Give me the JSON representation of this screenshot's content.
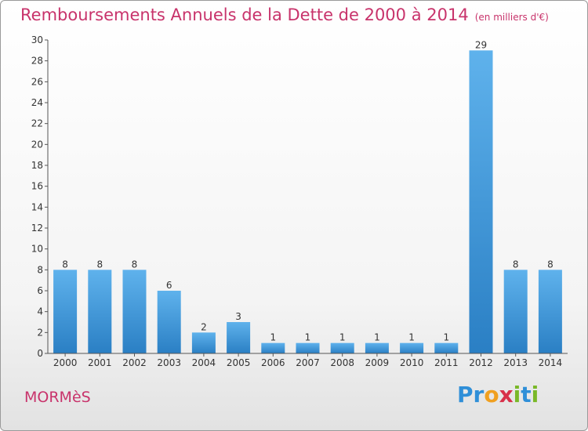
{
  "title": "Remboursements Annuels de la Dette de 2000 à 2014",
  "subtitle": "(en milliers d'€)",
  "commune": "MORMèS",
  "logo": {
    "letters": [
      "P",
      "r",
      "o",
      "x",
      "i",
      "t",
      "i"
    ],
    "colors": [
      "#2f8fd8",
      "#2f8fd8",
      "#f0a020",
      "#d8304a",
      "#7ab828",
      "#2f8fd8",
      "#7ab828"
    ]
  },
  "colors": {
    "bar_top": "#5fb2ec",
    "bar_bottom": "#2a7fc4",
    "title": "#c8336b",
    "axis": "#555555",
    "grid_tick": "#555555"
  },
  "chart_data": {
    "type": "bar",
    "categories": [
      "2000",
      "2001",
      "2002",
      "2003",
      "2004",
      "2005",
      "2006",
      "2007",
      "2008",
      "2009",
      "2010",
      "2011",
      "2012",
      "2013",
      "2014"
    ],
    "values": [
      8,
      8,
      8,
      6,
      2,
      3,
      1,
      1,
      1,
      1,
      1,
      1,
      29,
      8,
      8
    ],
    "title": "Remboursements Annuels de la Dette de 2000 à 2014",
    "xlabel": "",
    "ylabel": "",
    "ylim": [
      0,
      30
    ],
    "yticks": [
      0,
      2,
      4,
      6,
      8,
      10,
      12,
      14,
      16,
      18,
      20,
      22,
      24,
      26,
      28,
      30
    ],
    "grid": false,
    "data_labels": true
  }
}
